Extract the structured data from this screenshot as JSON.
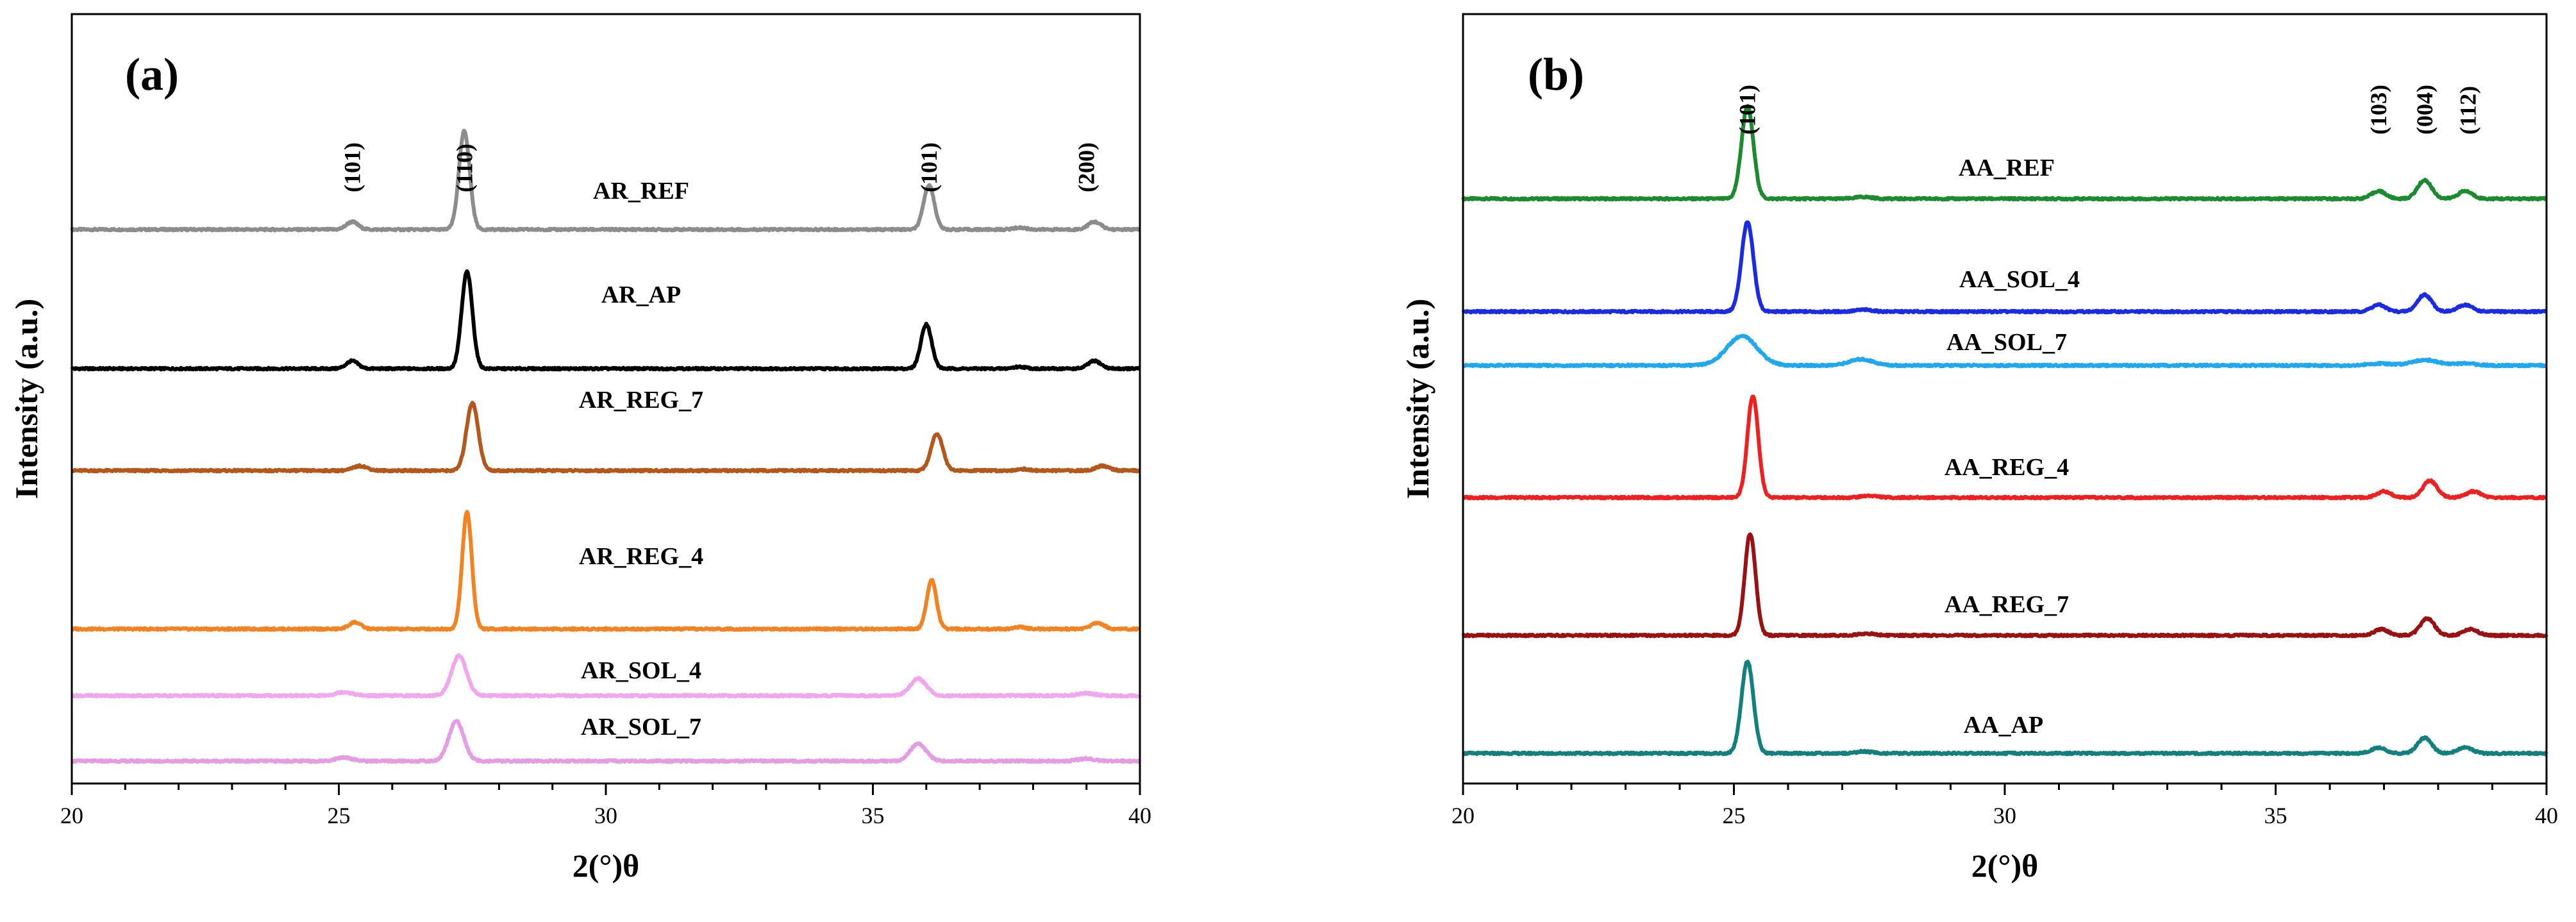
{
  "chart_data": [
    {
      "type": "line",
      "panel": "(a)",
      "xlabel": "2(°)θ",
      "ylabel": "Intensity (a.u.)",
      "xlim": [
        20,
        40
      ],
      "xticks": [
        20,
        25,
        30,
        35,
        40
      ],
      "yaxis_units": "arbitrary (curves vertically offset)",
      "grid": false,
      "series": [
        {
          "name": "AR_REF",
          "color": "#8c8c8c",
          "baseline": 7.6,
          "peaks": [
            [
              25.25,
              0.25,
              0.11
            ],
            [
              27.35,
              3.2,
              0.1
            ],
            [
              36.05,
              1.45,
              0.1
            ],
            [
              37.75,
              0.06,
              0.12
            ],
            [
              39.15,
              0.25,
              0.12
            ]
          ]
        },
        {
          "name": "AR_AP",
          "color": "#000000",
          "baseline": 5.95,
          "peaks": [
            [
              25.25,
              0.25,
              0.11
            ],
            [
              27.4,
              3.15,
              0.1
            ],
            [
              36.0,
              1.45,
              0.1
            ],
            [
              37.75,
              0.06,
              0.12
            ],
            [
              39.15,
              0.25,
              0.12
            ]
          ]
        },
        {
          "name": "AR_REG_7",
          "color": "#b5561a",
          "baseline": 4.3,
          "peaks": [
            [
              25.4,
              0.15,
              0.13
            ],
            [
              27.5,
              2.2,
              0.11
            ],
            [
              36.2,
              1.2,
              0.11
            ],
            [
              37.8,
              0.05,
              0.12
            ],
            [
              39.3,
              0.15,
              0.13
            ]
          ]
        },
        {
          "name": "AR_REG_4",
          "color": "#f58220",
          "baseline": 2.4,
          "peaks": [
            [
              25.3,
              0.22,
              0.11
            ],
            [
              27.4,
              3.8,
              0.09
            ],
            [
              36.1,
              1.6,
              0.09
            ],
            [
              37.75,
              0.06,
              0.12
            ],
            [
              39.2,
              0.2,
              0.12
            ]
          ]
        },
        {
          "name": "AR_SOL_4",
          "color": "#f2a6f0",
          "baseline": 1.25,
          "peaks": [
            [
              25.1,
              0.12,
              0.15
            ],
            [
              27.25,
              1.3,
              0.14
            ],
            [
              35.85,
              0.55,
              0.15
            ],
            [
              39.0,
              0.08,
              0.15
            ]
          ]
        },
        {
          "name": "AR_SOL_7",
          "color": "#e59be6",
          "baseline": 0.45,
          "peaks": [
            [
              25.1,
              0.12,
              0.15
            ],
            [
              27.2,
              1.3,
              0.14
            ],
            [
              35.85,
              0.55,
              0.15
            ],
            [
              39.0,
              0.08,
              0.15
            ]
          ]
        }
      ],
      "peak_annotations": [
        {
          "label": "(101)",
          "x": 25.25
        },
        {
          "label": "(110)",
          "x": 27.35
        },
        {
          "label": "(101)",
          "x": 36.05
        },
        {
          "label": "(200)",
          "x": 39.0
        }
      ]
    },
    {
      "type": "line",
      "panel": "(b)",
      "xlabel": "2(°)θ",
      "ylabel": "Intensity (a.u.)",
      "xlim": [
        20,
        40
      ],
      "xticks": [
        20,
        25,
        30,
        35,
        40
      ],
      "yaxis_units": "arbitrary (curves vertically offset)",
      "grid": false,
      "series": [
        {
          "name": "AA_REF",
          "color": "#1a8c2e",
          "baseline": 8.5,
          "peaks": [
            [
              25.25,
              3.0,
              0.11
            ],
            [
              27.4,
              0.06,
              0.15
            ],
            [
              36.9,
              0.25,
              0.13
            ],
            [
              37.75,
              0.6,
              0.13
            ],
            [
              38.5,
              0.25,
              0.13
            ]
          ]
        },
        {
          "name": "AA_SOL_4",
          "color": "#1a2be6",
          "baseline": 6.75,
          "peaks": [
            [
              25.25,
              2.9,
              0.11
            ],
            [
              27.4,
              0.06,
              0.15
            ],
            [
              36.9,
              0.22,
              0.13
            ],
            [
              37.75,
              0.55,
              0.13
            ],
            [
              38.5,
              0.22,
              0.13
            ]
          ]
        },
        {
          "name": "AA_SOL_7",
          "color": "#1ea8f0",
          "baseline": 5.95,
          "peaks": [
            [
              25.15,
              0.95,
              0.28
            ],
            [
              27.35,
              0.2,
              0.22
            ],
            [
              36.9,
              0.06,
              0.2
            ],
            [
              37.75,
              0.18,
              0.25
            ],
            [
              38.5,
              0.06,
              0.2
            ]
          ]
        },
        {
          "name": "AA_REG_4",
          "color": "#f02020",
          "baseline": 3.9,
          "peaks": [
            [
              25.35,
              3.3,
              0.1
            ],
            [
              27.5,
              0.06,
              0.15
            ],
            [
              37.0,
              0.2,
              0.13
            ],
            [
              37.85,
              0.55,
              0.13
            ],
            [
              38.65,
              0.2,
              0.13
            ]
          ]
        },
        {
          "name": "AA_REG_7",
          "color": "#9b1010",
          "baseline": 1.85,
          "peaks": [
            [
              25.3,
              3.3,
              0.1
            ],
            [
              27.45,
              0.06,
              0.15
            ],
            [
              36.95,
              0.2,
              0.13
            ],
            [
              37.8,
              0.55,
              0.13
            ],
            [
              38.6,
              0.2,
              0.13
            ]
          ]
        },
        {
          "name": "AA_AP",
          "color": "#138080",
          "baseline": 0.1,
          "peaks": [
            [
              25.25,
              3.0,
              0.11
            ],
            [
              27.4,
              0.06,
              0.15
            ],
            [
              36.9,
              0.18,
              0.13
            ],
            [
              37.75,
              0.5,
              0.13
            ],
            [
              38.5,
              0.2,
              0.13
            ]
          ]
        }
      ],
      "peak_annotations": [
        {
          "label": "(101)",
          "x": 25.25
        },
        {
          "label": "(103)",
          "x": 36.9
        },
        {
          "label": "(004)",
          "x": 37.75
        },
        {
          "label": "(112)",
          "x": 38.55
        }
      ]
    }
  ]
}
